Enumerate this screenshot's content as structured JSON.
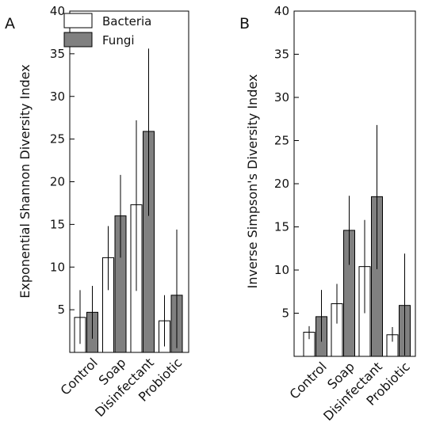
{
  "chart_data": [
    {
      "type": "bar",
      "panel_label": "A",
      "ylabel": "Exponential Shannon Diversity Index",
      "ylim": [
        0,
        40
      ],
      "yticks": [
        5,
        10,
        15,
        20,
        25,
        30,
        35,
        40
      ],
      "categories": [
        "Control",
        "Soap",
        "Disinfectant",
        "Probiotic"
      ],
      "legend": {
        "position": "top-left"
      },
      "series": [
        {
          "name": "Bacteria",
          "color": "#ffffff",
          "values": [
            4.1,
            11.1,
            17.3,
            3.7
          ],
          "error_low": [
            1.0,
            7.3,
            7.2,
            0.7
          ],
          "error_high": [
            7.3,
            14.8,
            27.2,
            6.7
          ]
        },
        {
          "name": "Fungi",
          "color": "#808080",
          "values": [
            4.7,
            16.0,
            25.9,
            6.7
          ],
          "error_low": [
            1.6,
            11.1,
            16.0,
            0.5
          ],
          "error_high": [
            7.8,
            20.8,
            35.6,
            14.4
          ]
        }
      ]
    },
    {
      "type": "bar",
      "panel_label": "B",
      "ylabel": "Inverse Simpson's Diversity Index",
      "ylim": [
        0,
        40
      ],
      "yticks": [
        5,
        10,
        15,
        20,
        25,
        30,
        35,
        40
      ],
      "categories": [
        "Control",
        "Soap",
        "Disinfectant",
        "Probiotic"
      ],
      "series": [
        {
          "name": "Bacteria",
          "color": "#ffffff",
          "values": [
            2.8,
            6.1,
            10.4,
            2.5
          ],
          "error_low": [
            2.0,
            3.8,
            5.0,
            1.7
          ],
          "error_high": [
            3.5,
            8.4,
            15.8,
            3.4
          ]
        },
        {
          "name": "Fungi",
          "color": "#808080",
          "values": [
            4.6,
            14.6,
            18.5,
            5.9
          ],
          "error_low": [
            1.7,
            10.6,
            10.1,
            0.1
          ],
          "error_high": [
            7.7,
            18.6,
            26.8,
            11.9
          ]
        }
      ]
    }
  ]
}
